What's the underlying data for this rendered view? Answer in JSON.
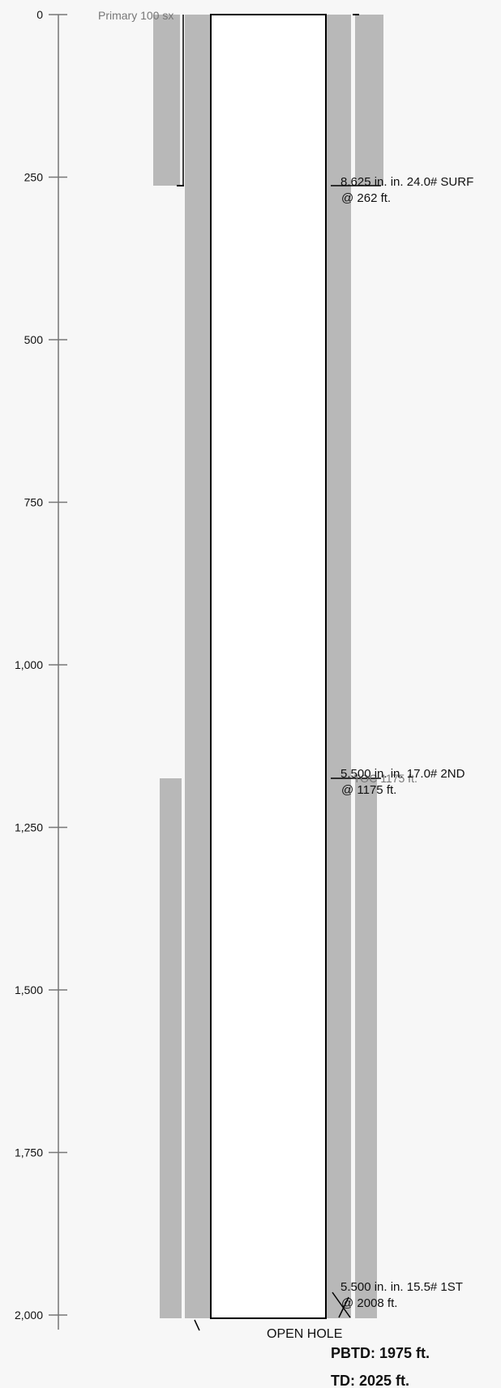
{
  "axis": {
    "ticks": [
      "0",
      "250",
      "500",
      "750",
      "1,000",
      "1,250",
      "1,500",
      "1,750",
      "2,000"
    ]
  },
  "cement": {
    "primary_label": "Primary 100 sx"
  },
  "casings": [
    {
      "size_line": "8.625 in. in. 24.0# SURF",
      "depth_line": "@ 262 ft."
    },
    {
      "size_line": "5.500 in. in. 17.0# 2ND",
      "depth_line": "@ 1175 ft."
    },
    {
      "size_line": "5.500 in. in. 15.5# 1ST",
      "depth_line": "@ 2008 ft."
    }
  ],
  "toc_label": "TOC 1175 ft.",
  "open_hole_label": "OPEN HOLE",
  "pbtd_label": "PBTD: 1975 ft.",
  "td_label": "TD: 2025 ft.",
  "colors": {
    "cement": "#b8b8b8",
    "outline": "#000000",
    "axis": "#777777",
    "bore": "#ffffff"
  }
}
